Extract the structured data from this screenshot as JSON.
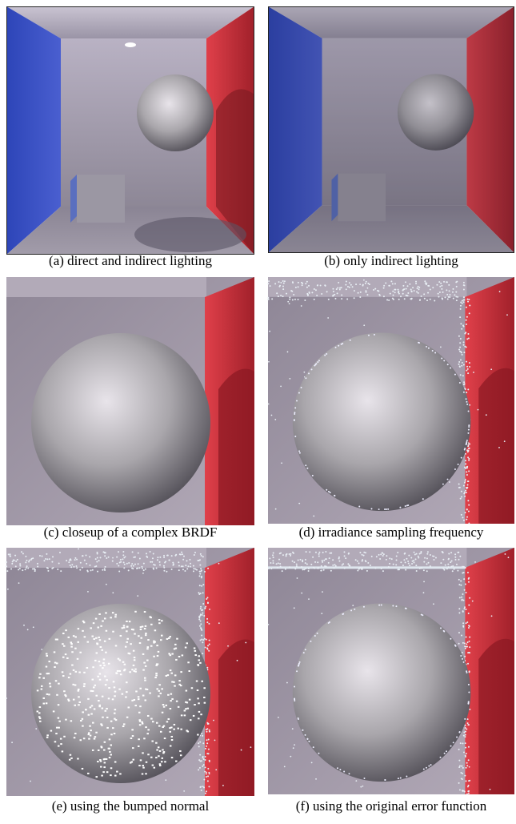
{
  "figure": {
    "panels": [
      {
        "caption": "(a) direct and indirect lighting"
      },
      {
        "caption": "(b) only indirect lighting"
      },
      {
        "caption": "(c) closeup of a complex BRDF"
      },
      {
        "caption": "(d) irradiance sampling frequency"
      },
      {
        "caption": "(e) using the bumped normal"
      },
      {
        "caption": "(f) using the original error function"
      }
    ]
  }
}
